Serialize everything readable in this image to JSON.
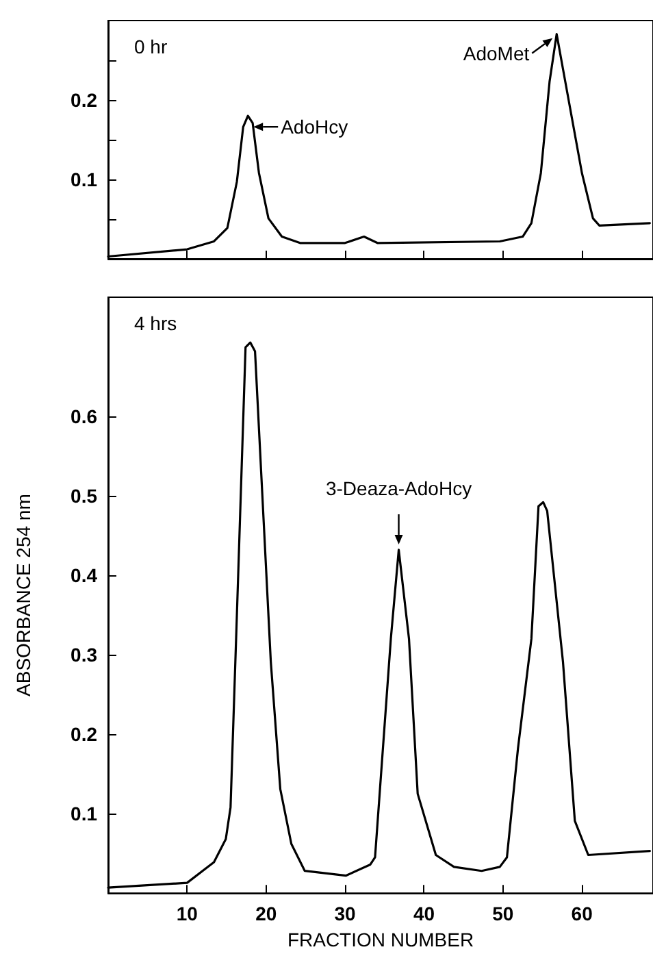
{
  "chart_data": [
    {
      "type": "line",
      "tick_labels": "y",
      "xlim": [
        0,
        69
      ],
      "xticks": [
        10,
        20,
        30,
        40,
        50,
        60
      ],
      "ylim": [
        0,
        0.3
      ],
      "yticks": [
        {
          "value": 0.05,
          "label": null
        },
        0.1,
        {
          "value": 0.15,
          "label": null
        },
        0.2,
        {
          "value": 0.25,
          "label": null
        }
      ],
      "grid": false,
      "marker": "none",
      "line_style": "solid",
      "annotations": [
        "0 hr",
        {
          "text": "AdoHcy",
          "x": 17.7,
          "y": 0.18
        },
        {
          "text": "AdoMet",
          "x": 56.8,
          "y": 0.283
        }
      ],
      "series": [
        {
          "color": "#000000",
          "x": [
            0,
            10,
            13.4,
            15.1,
            16.3,
            17.1,
            17.7,
            18.3,
            19.1,
            20.3,
            22,
            24.3,
            30,
            32.4,
            34.1,
            49.6,
            52.5,
            53.6,
            54.8,
            55.9,
            56.8,
            57.6,
            60,
            61.4,
            62.2,
            68.6
          ],
          "values": [
            0.003,
            0.012,
            0.022,
            0.039,
            0.097,
            0.166,
            0.18,
            0.171,
            0.108,
            0.051,
            0.028,
            0.02,
            0.02,
            0.028,
            0.02,
            0.022,
            0.028,
            0.045,
            0.108,
            0.223,
            0.283,
            0.239,
            0.108,
            0.051,
            0.042,
            0.045
          ]
        }
      ]
    },
    {
      "type": "line",
      "xlabel": "FRACTION NUMBER",
      "ylabel": "ABSORBANCE 254 nm",
      "xlim": [
        0,
        69
      ],
      "xticks": [
        10,
        20,
        30,
        40,
        50,
        60
      ],
      "ylim": [
        0,
        0.75
      ],
      "yticks": [
        0.1,
        0.2,
        0.3,
        0.4,
        0.5,
        0.6
      ],
      "grid": false,
      "marker": "none",
      "line_style": "solid",
      "annotations": [
        "4 hrs",
        {
          "text": "3-Deaza-AdoHcy",
          "x": 36.8,
          "y": 0.432
        }
      ],
      "series": [
        {
          "color": "#000000",
          "x": [
            0,
            10,
            13.4,
            14.9,
            15.5,
            16.3,
            17.4,
            18,
            18.6,
            20.6,
            21.8,
            23.2,
            24.9,
            30.1,
            33.2,
            33.8,
            35.8,
            36.8,
            38.1,
            39.2,
            41.5,
            43.8,
            47.3,
            49.6,
            50.5,
            51.9,
            53.6,
            54.5,
            55.1,
            55.6,
            57.6,
            59.1,
            60.8,
            68.6
          ],
          "values": [
            0.007,
            0.013,
            0.039,
            0.068,
            0.108,
            0.349,
            0.687,
            0.693,
            0.682,
            0.291,
            0.131,
            0.062,
            0.028,
            0.022,
            0.036,
            0.045,
            0.32,
            0.432,
            0.32,
            0.125,
            0.048,
            0.033,
            0.028,
            0.033,
            0.045,
            0.182,
            0.32,
            0.487,
            0.492,
            0.481,
            0.291,
            0.091,
            0.048,
            0.053
          ]
        }
      ]
    }
  ]
}
